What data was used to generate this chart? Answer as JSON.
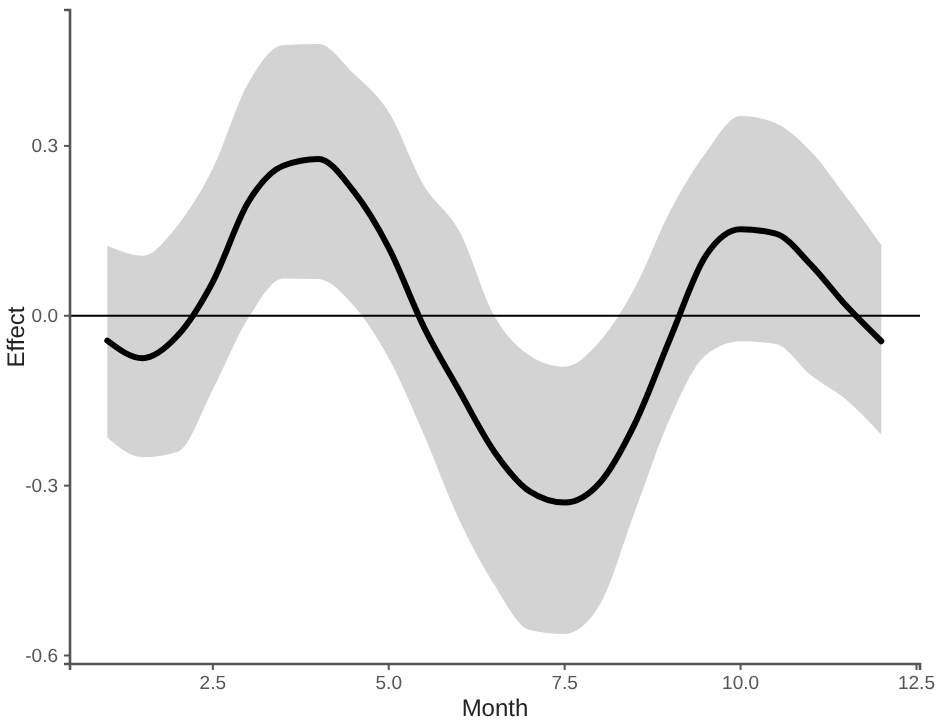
{
  "chart_data": {
    "type": "line",
    "xlabel": "Month",
    "ylabel": "Effect",
    "x": [
      1,
      1.5,
      2,
      2.5,
      3,
      3.5,
      4,
      4.5,
      5,
      5.5,
      6,
      6.5,
      7,
      7.5,
      8,
      8.5,
      9,
      9.5,
      10,
      10.5,
      11,
      11.5,
      12
    ],
    "series": [
      {
        "color": "#000000",
        "values": [
          -0.044,
          -0.075,
          -0.035,
          0.06,
          0.2,
          0.265,
          0.277,
          0.22,
          0.12,
          -0.02,
          -0.132,
          -0.24,
          -0.31,
          -0.33,
          -0.295,
          -0.19,
          -0.04,
          0.105,
          0.153,
          0.145,
          0.09,
          0.018,
          -0.045
        ],
        "lower": [
          -0.215,
          -0.25,
          -0.24,
          -0.13,
          -0.005,
          0.066,
          0.065,
          0.018,
          -0.075,
          -0.21,
          -0.36,
          -0.475,
          -0.555,
          -0.562,
          -0.51,
          -0.345,
          -0.18,
          -0.07,
          -0.045,
          -0.05,
          -0.105,
          -0.148,
          -0.21
        ],
        "upper": [
          0.124,
          0.106,
          0.16,
          0.26,
          0.41,
          0.478,
          0.48,
          0.428,
          0.36,
          0.23,
          0.15,
          0.0,
          -0.07,
          -0.09,
          -0.045,
          0.05,
          0.185,
          0.287,
          0.353,
          0.34,
          0.29,
          0.21,
          0.125
        ]
      }
    ],
    "xlim": [
      0.47,
      12.55
    ],
    "xticks": [
      2.5,
      {
        "value": 5,
        "label": "5.0"
      },
      7.5,
      {
        "value": 10,
        "label": "10.0"
      },
      12.5
    ],
    "ylim": [
      -0.615,
      0.54
    ],
    "yticks": [
      -0.6,
      -0.3,
      {
        "value": 0,
        "label": "0.0"
      },
      0.3
    ],
    "ref_lines": [
      {
        "axis": "y",
        "value": 0,
        "color": "#000000"
      }
    ],
    "grid": false,
    "marker": "none",
    "line_style": "solid"
  }
}
